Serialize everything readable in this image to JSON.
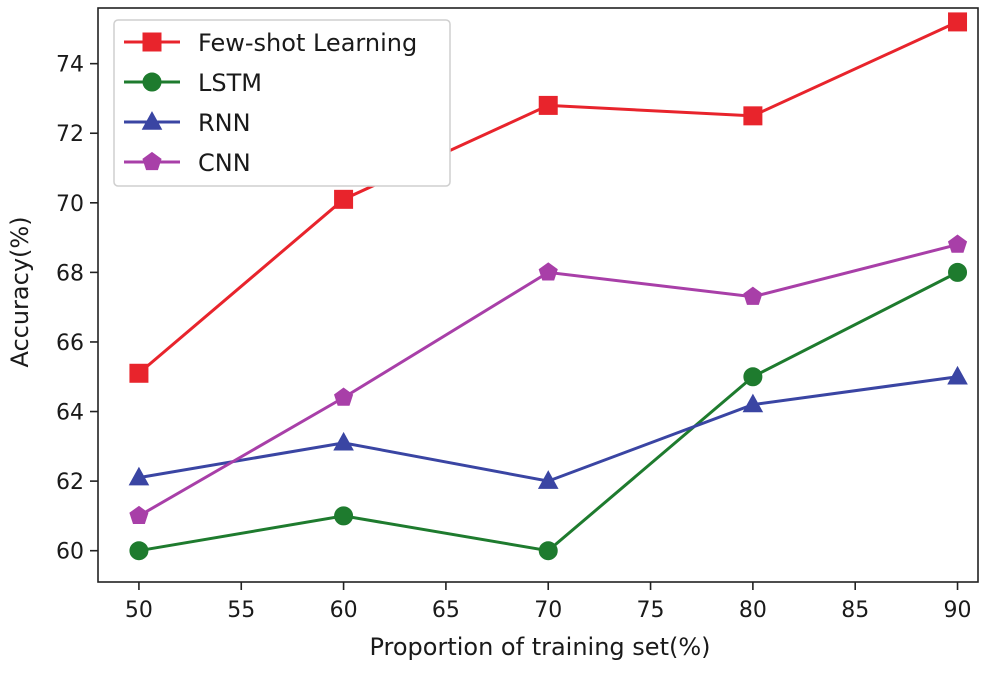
{
  "chart_data": {
    "type": "line",
    "title": "",
    "xlabel": "Proportion of training set(%)",
    "ylabel": "Accuracy(%)",
    "x": [
      50,
      60,
      70,
      80,
      90
    ],
    "xlim": [
      48,
      91
    ],
    "ylim": [
      59.1,
      75.6
    ],
    "xticks": [
      50,
      55,
      60,
      65,
      70,
      75,
      80,
      85,
      90
    ],
    "yticks": [
      60,
      62,
      64,
      66,
      68,
      70,
      72,
      74
    ],
    "grid": false,
    "legend_position": "top-left",
    "series": [
      {
        "name": "Few-shot Learning",
        "color": "#e8242c",
        "marker": "square",
        "values": [
          65.1,
          70.1,
          72.8,
          72.5,
          75.2
        ]
      },
      {
        "name": "LSTM",
        "color": "#1e7b2e",
        "marker": "circle",
        "values": [
          60.0,
          61.0,
          60.0,
          65.0,
          68.0
        ]
      },
      {
        "name": "RNN",
        "color": "#3a45a3",
        "marker": "triangle",
        "values": [
          62.1,
          63.1,
          62.0,
          64.2,
          65.0
        ]
      },
      {
        "name": "CNN",
        "color": "#a83fa8",
        "marker": "pentagon",
        "values": [
          61.0,
          64.4,
          68.0,
          67.3,
          68.8
        ]
      }
    ]
  }
}
